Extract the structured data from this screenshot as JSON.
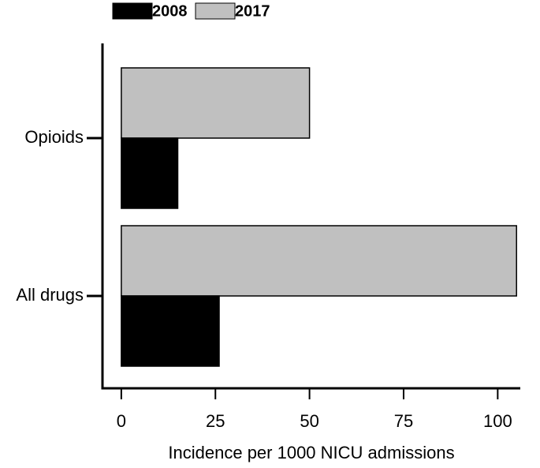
{
  "chart_data": {
    "type": "barh",
    "xlabel": "Incidence per 1000 NICU admissions",
    "categories": [
      "Opioids",
      "All drugs"
    ],
    "series": [
      {
        "name": "2008",
        "color": "#000000",
        "values": [
          15,
          26
        ]
      },
      {
        "name": "2017",
        "color": "#c0c0c0",
        "values": [
          50,
          105
        ]
      }
    ],
    "xlim": [
      -5,
      106
    ],
    "xticks": [
      0,
      25,
      50,
      75,
      100
    ],
    "legend": "top"
  }
}
